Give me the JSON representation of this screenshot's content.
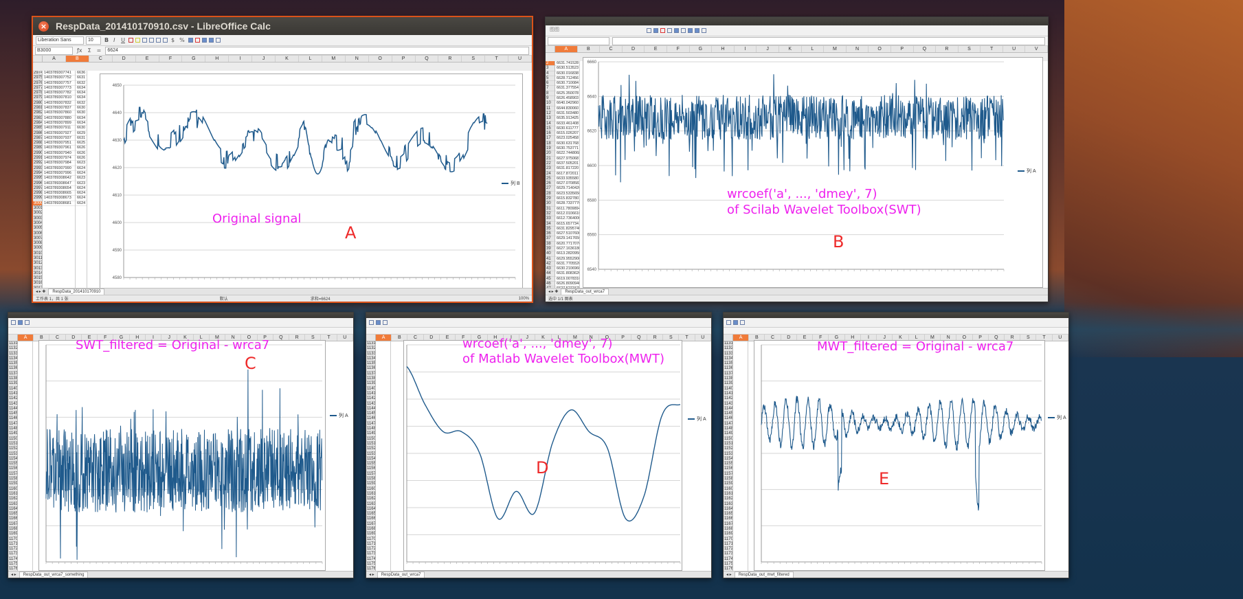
{
  "win_a": {
    "title": "RespData_201410170910.csv - LibreOffice Calc",
    "font_name": "Liberation Sans",
    "font_size": "10",
    "name_box": "B3000",
    "formula_value": "6624",
    "columns": [
      "A",
      "B",
      "C",
      "D",
      "E",
      "F",
      "G",
      "H",
      "I",
      "J",
      "K",
      "L",
      "M",
      "N",
      "O",
      "P",
      "Q",
      "R",
      "S",
      "T",
      "U"
    ],
    "selected_col": "B",
    "rows": [
      "2974",
      "2975",
      "2976",
      "2977",
      "2978",
      "2979",
      "2980",
      "2981",
      "2982",
      "2983",
      "2984",
      "2985",
      "2986",
      "2987",
      "2988",
      "2989",
      "2990",
      "2991",
      "2992",
      "2993",
      "2994",
      "2995",
      "2996",
      "2997",
      "2998",
      "2999",
      "3000",
      "3001",
      "3002",
      "3003",
      "3004",
      "3005",
      "3006",
      "3007",
      "3008",
      "3009",
      "3010",
      "3011",
      "3012",
      "3013",
      "3014",
      "3015",
      "3016",
      "3017",
      "3018",
      "3019",
      "3020",
      "3021",
      "3022"
    ],
    "selected_row": "3000",
    "col_a": [
      "1403789307741",
      "1403789307752",
      "1403789307757",
      "1403789307773",
      "1403789307782",
      "1403789307810",
      "1403789307832",
      "1403789307837",
      "1403789307860",
      "1403789307880",
      "1403789307899",
      "1403789307911",
      "1403789307927",
      "1403789307937",
      "1403789307951",
      "1403789307961",
      "1403789307940",
      "1403789307974",
      "1403789307984",
      "1403789307990",
      "1403789307996",
      "1403789308642",
      "1403789308647",
      "1403789308654",
      "1403789308665",
      "1403789308673",
      "1403789308681"
    ],
    "col_b": [
      "6636",
      "6631",
      "6632",
      "6634",
      "6634",
      "6634",
      "6632",
      "6630",
      "6630",
      "6634",
      "6634",
      "6630",
      "6629",
      "6631",
      "6625",
      "6626",
      "6626",
      "6626",
      "6623",
      "6624",
      "6624",
      "6623",
      "6623",
      "6624",
      "6624",
      "6624",
      "6624"
    ],
    "legend": "列 B",
    "y_ticks": [
      "4650",
      "4640",
      "4630",
      "4620",
      "4610",
      "4600",
      "4590",
      "4580"
    ],
    "sheet_tab": "RespData_201410170910",
    "status": [
      "工作表 1，共 1 张",
      "默认",
      "求和=6624",
      "100%"
    ]
  },
  "win_b": {
    "toolbar_font": "图图",
    "rows": [
      "2",
      "3",
      "4",
      "5",
      "6",
      "7",
      "8",
      "9",
      "10",
      "11",
      "12",
      "13",
      "14",
      "15",
      "16",
      "17",
      "18",
      "19",
      "20",
      "21",
      "22",
      "23",
      "24",
      "25",
      "26",
      "27",
      "28",
      "29",
      "30",
      "31",
      "32",
      "33",
      "34",
      "35",
      "36",
      "37",
      "38",
      "39",
      "40",
      "41",
      "42",
      "43",
      "44",
      "45",
      "46",
      "47",
      "48",
      "49",
      "50",
      "51"
    ],
    "selected_row": "2",
    "columns": [
      "A",
      "B",
      "C",
      "D",
      "E",
      "F",
      "G",
      "H",
      "I",
      "J",
      "K",
      "L",
      "M",
      "N",
      "O",
      "P",
      "Q",
      "R",
      "S",
      "T",
      "U",
      "V"
    ],
    "col_a": [
      "6631.741528",
      "6630.513523",
      "6630.016838",
      "6628.712456",
      "6630.710084",
      "6631.377554",
      "6625.350078",
      "6626.458903",
      "6640.042960",
      "6644.830060",
      "6631.503480",
      "6635.913425",
      "6633.461408",
      "6630.611777",
      "6615.026207",
      "6623.025458",
      "6630.631768",
      "6630.753771",
      "6622.7448068",
      "6627.975068",
      "6637.505201",
      "6631.817220",
      "6617.872011",
      "6633.935580",
      "6627.0708583",
      "6629.7140420",
      "6623.5335650",
      "6615.8327801",
      "6628.7337770",
      "6611.7809894",
      "6612.0106610",
      "6612.7364000",
      "6615.657734",
      "6631.8295740",
      "6627.5107600",
      "6629.1417650",
      "6620.7717070",
      "6627.1636180",
      "6613.2820950",
      "6629.9552900",
      "6631.7705520",
      "6630.2106960",
      "6631.8083620",
      "6619.0078310",
      "6626.8090940",
      "6627.5271570",
      "6614.6579070",
      "6628.2060080",
      "6627.1442440",
      "6626.1802400"
    ],
    "legend": "列 A",
    "y_ticks": [
      "6660",
      "6640",
      "6620",
      "6600",
      "6580",
      "6560",
      "6540"
    ],
    "sheet_tab": "RespData_out_wrca7",
    "status": "选中 1/1 图表"
  },
  "win_c": {
    "sheet_tab": "RespData_out_wrca7_something",
    "legend": "列 A"
  },
  "win_d": {
    "sheet_tab": "RespData_out_wrca7",
    "legend": "列 A"
  },
  "win_e": {
    "sheet_tab": "RespData_out_mwt_filtered",
    "legend": "列 A"
  },
  "annotations": {
    "a_label": "Original signal",
    "a_letter": "A",
    "b_line1": "wrcoef('a', ..., 'dmey', 7)",
    "b_line2": "of Scilab Wavelet Toolbox(SWT)",
    "b_letter": "B",
    "c_label": "SWT_filtered = Original - wrca7",
    "c_letter": "C",
    "d_line1": "wrcoef('a', ..., 'dmey', 7)",
    "d_line2": "of Matlab Wavelet Toolbox(MWT)",
    "d_letter": "D",
    "e_label": "MWT_filtered = Original - wrca7",
    "e_letter": "E"
  },
  "chart_data": [
    {
      "type": "line",
      "series": [
        {
          "name": "列 B"
        }
      ],
      "ylim": [
        4580,
        4650
      ],
      "note_values": "original signal"
    },
    {
      "type": "line",
      "series": [
        {
          "name": "列 A"
        }
      ],
      "ylim": [
        6540,
        6660
      ]
    },
    {
      "type": "line",
      "series": [
        {
          "name": "列 A"
        }
      ]
    },
    {
      "type": "line",
      "series": [
        {
          "name": "列 A"
        }
      ],
      "y": [
        4636,
        4629,
        4624,
        4624,
        4620,
        4608,
        4613,
        4609,
        4622,
        4628,
        4624,
        4621,
        4608,
        4612,
        4627,
        4629
      ]
    },
    {
      "type": "line",
      "series": [
        {
          "name": "列 A"
        }
      ]
    }
  ]
}
